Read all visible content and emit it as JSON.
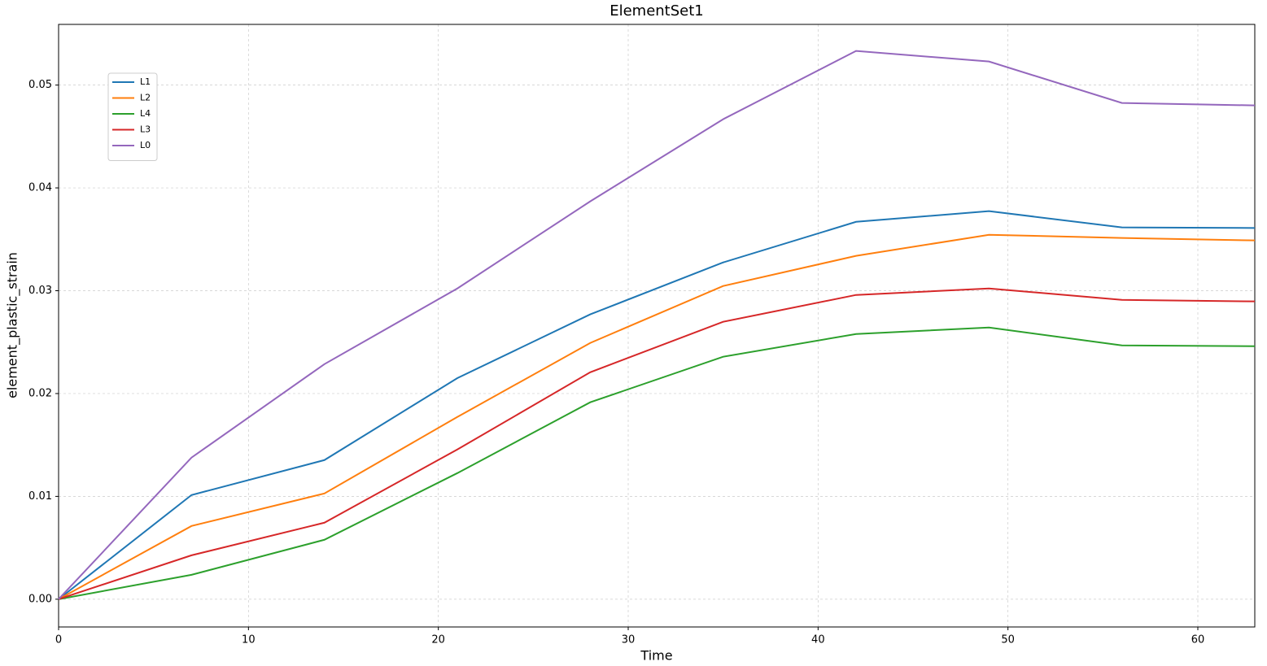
{
  "chart_data": {
    "type": "line",
    "title": "ElementSet1",
    "x_label": "Time",
    "y_label": "element_plastic_strain",
    "x": [
      0,
      7,
      14,
      21,
      28,
      35,
      42,
      49,
      56,
      63
    ],
    "series": [
      {
        "name": "L1",
        "color": "#1f77b4",
        "values": [
          0,
          0.01013,
          0.01353,
          0.0215,
          0.0277,
          0.03275,
          0.0367,
          0.03774,
          0.03616,
          0.0361
        ]
      },
      {
        "name": "L2",
        "color": "#ff7f0e",
        "values": [
          0,
          0.00712,
          0.01028,
          0.01772,
          0.02492,
          0.03046,
          0.03339,
          0.03544,
          0.03513,
          0.03489
        ]
      },
      {
        "name": "L4",
        "color": "#2ca02c",
        "values": [
          0,
          0.00237,
          0.00578,
          0.01226,
          0.01915,
          0.02358,
          0.02579,
          0.02642,
          0.02468,
          0.0246
        ]
      },
      {
        "name": "L3",
        "color": "#d62728",
        "values": [
          0,
          0.00427,
          0.00744,
          0.01456,
          0.02207,
          0.02698,
          0.02959,
          0.03022,
          0.02911,
          0.02896
        ]
      },
      {
        "name": "L0",
        "color": "#9467bd",
        "values": [
          0,
          0.01377,
          0.02286,
          0.03022,
          0.03869,
          0.04668,
          0.05332,
          0.05229,
          0.04826,
          0.04802
        ]
      }
    ],
    "xlim": [
      0,
      63
    ],
    "ylim": [
      -0.0027,
      0.0559
    ],
    "xticks": [
      0,
      10,
      20,
      30,
      40,
      50,
      60
    ],
    "yticks": [
      {
        "value": 0,
        "label": "0.00"
      },
      {
        "value": 0.01,
        "label": "0.01"
      },
      {
        "value": 0.02,
        "label": "0.02"
      },
      {
        "value": 0.03,
        "label": "0.03"
      },
      {
        "value": 0.04,
        "label": "0.04"
      },
      {
        "value": 0.05,
        "label": "0.05"
      }
    ],
    "grid": true,
    "legend": "upper-left"
  }
}
